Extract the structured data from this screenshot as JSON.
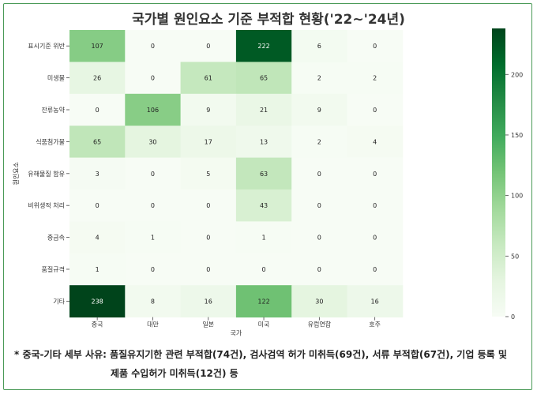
{
  "title": "국가별 원인요소 기준 부적합 현황('22~'24년)",
  "chart_data": {
    "type": "heatmap",
    "xlabel": "국가",
    "ylabel": "원인요소",
    "x_categories": [
      "중국",
      "대만",
      "일본",
      "미국",
      "유럽연합",
      "호주"
    ],
    "y_categories": [
      "표시기준 위반",
      "미생물",
      "잔류농약",
      "식품첨가물",
      "유해물질 함유",
      "비위생적 처리",
      "중금속",
      "품질규격",
      "기타"
    ],
    "values": [
      [
        107,
        0,
        0,
        222,
        6,
        0
      ],
      [
        26,
        0,
        61,
        65,
        2,
        2
      ],
      [
        0,
        106,
        9,
        21,
        9,
        0
      ],
      [
        65,
        30,
        17,
        13,
        2,
        4
      ],
      [
        3,
        0,
        5,
        63,
        0,
        0
      ],
      [
        0,
        0,
        0,
        43,
        0,
        0
      ],
      [
        4,
        1,
        0,
        1,
        0,
        0
      ],
      [
        1,
        0,
        0,
        0,
        0,
        0
      ],
      [
        238,
        8,
        16,
        122,
        30,
        16
      ]
    ],
    "colorbar": {
      "min": 0,
      "max": 238,
      "ticks": [
        0,
        50,
        100,
        150,
        200
      ]
    },
    "colormap": [
      "#f7fcf5",
      "#e5f5e0",
      "#c7e9c0",
      "#a1d99b",
      "#74c476",
      "#41ab5d",
      "#238b45",
      "#006d2c",
      "#00441b"
    ]
  },
  "note": {
    "line1": "* 중국-기타 세부 사유: 품질유지기한 관련 부적합(74건), 검사검역 허가 미취득(69건), 서류 부적합(67건), 기업 등록 및",
    "line2": "제품 수입허가 미취득(12건) 등"
  }
}
